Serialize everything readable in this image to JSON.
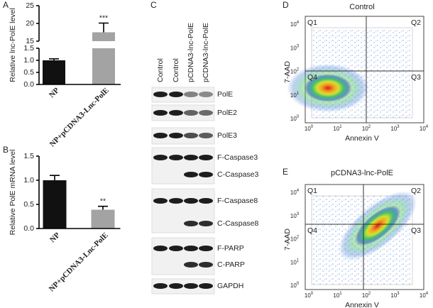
{
  "panel_labels": [
    "A",
    "B",
    "C",
    "D",
    "E"
  ],
  "chart_data": [
    {
      "type": "bar",
      "ylabel": "Relative lnc-PolE level",
      "categories": [
        "NP",
        "NP+pCDNA3-Lnc-PolE"
      ],
      "values": [
        1.0,
        17.5
      ],
      "errors": [
        0.06,
        2.6
      ],
      "colors": [
        "#111111",
        "#a3a3a3"
      ],
      "ylim": [
        0,
        25
      ],
      "ybreak": [
        1.5,
        15
      ],
      "yticks": [
        {
          "value": 0,
          "label": "0.0"
        },
        0.5,
        {
          "value": 1,
          "label": "1.0"
        },
        1.5,
        15,
        20,
        25
      ],
      "value_annotations": [
        null,
        "***"
      ]
    },
    {
      "type": "bar",
      "ylabel": "Relative PolE mRNA level",
      "categories": [
        "NP",
        "NP+pCDNA3-Lnc-PolE"
      ],
      "values": [
        1.0,
        0.39
      ],
      "errors": [
        0.1,
        0.07
      ],
      "colors": [
        "#111111",
        "#a3a3a3"
      ],
      "ylim": [
        0,
        1.5
      ],
      "yticks": [
        {
          "value": 0,
          "label": "0.0"
        },
        0.5,
        {
          "value": 1,
          "label": "1.0"
        },
        1.5
      ],
      "value_annotations": [
        null,
        "**"
      ]
    }
  ],
  "blot": {
    "lanes": [
      "Control",
      "Control",
      "pCDNA3-lnc-PolE",
      "pCDNA3-lnc-PolE"
    ],
    "rows": [
      "PolE",
      "PolE2",
      "PolE3",
      "F-Caspase3",
      "C-Caspase3",
      "F-Caspase8",
      "C-Caspase8",
      "F-PARP",
      "C-PARP",
      "GAPDH"
    ]
  },
  "flow": [
    {
      "title": "Control",
      "ylabel": "7-AAD",
      "xlabel": "Annexin V",
      "quadrants": [
        "Q1",
        "Q2",
        "Q3",
        "Q4"
      ],
      "tick_base": "10",
      "tick_exponents": [
        0,
        1,
        2,
        3,
        4
      ]
    },
    {
      "title": "pCDNA3-lnc-PolE",
      "ylabel": "7-AAD",
      "xlabel": "Annexin V",
      "quadrants": [
        "Q1",
        "Q2",
        "Q3",
        "Q4"
      ],
      "tick_base": "10",
      "tick_exponents": [
        0,
        1,
        2,
        3,
        4
      ]
    }
  ]
}
